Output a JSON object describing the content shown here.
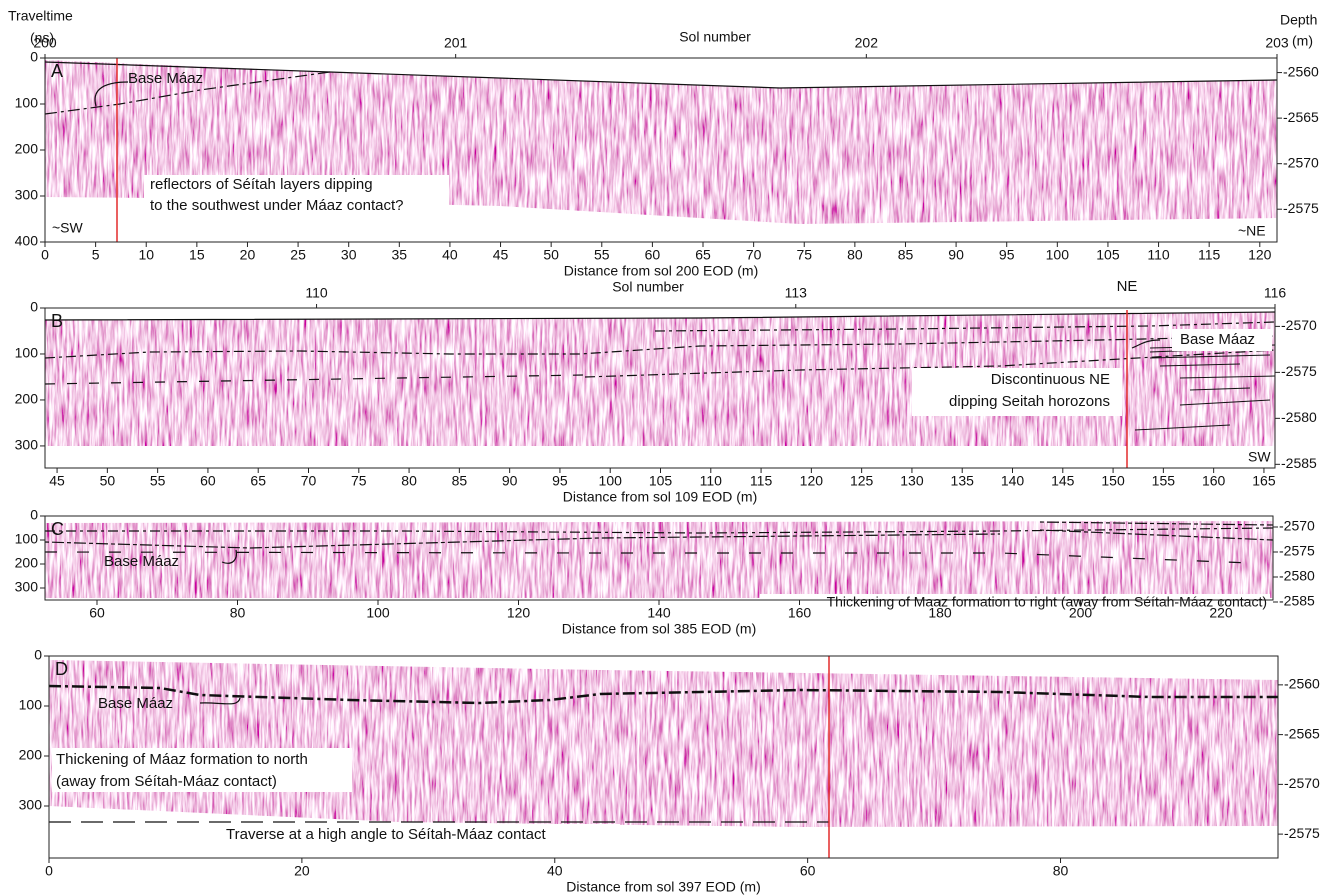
{
  "figure": {
    "traveltime_title": [
      "Traveltime",
      "(ns)"
    ],
    "depth_title": [
      "Depth",
      "(m)"
    ],
    "panels": [
      {
        "label": "A",
        "x_title": "Distance from sol 200 EOD (m)",
        "xlim": [
          0,
          121.7
        ],
        "xticks": [
          0,
          5,
          10,
          15,
          20,
          25,
          30,
          35,
          40,
          45,
          50,
          55,
          60,
          65,
          70,
          75,
          80,
          85,
          90,
          95,
          100,
          105,
          110,
          115,
          120
        ],
        "ylim": [
          0,
          400
        ],
        "yticks": [
          0,
          100,
          200,
          300,
          400
        ],
        "depth_lim": [
          -2558.4,
          -2578.6
        ],
        "depth_ticks": [
          -2560,
          -2565,
          -2570,
          -2575
        ],
        "sol_title": "Sol number",
        "sol_lim": [
          200,
          203
        ],
        "sol_ticks": [
          200,
          201,
          202,
          203
        ],
        "annotations": [
          "Base Máaz",
          "reflectors of Séítah layers dipping",
          "to the southwest under Máaz contact?",
          "~SW",
          "~NE"
        ]
      },
      {
        "label": "B",
        "x_title": "Distance from sol 109 EOD (m)",
        "xlim": [
          43.8,
          166.1
        ],
        "xticks": [
          45,
          50,
          55,
          60,
          65,
          70,
          75,
          80,
          85,
          90,
          95,
          100,
          105,
          110,
          115,
          120,
          125,
          130,
          135,
          140,
          145,
          150,
          155,
          160,
          165
        ],
        "ylim": [
          0,
          348
        ],
        "yticks": [
          0,
          100,
          200,
          300
        ],
        "depth_lim": [
          -2568.0,
          -2585.4
        ],
        "depth_ticks": [
          -2570,
          -2575,
          -2580,
          -2585
        ],
        "sol_title": "Sol number",
        "sol_lim": [
          108.3,
          116
        ],
        "sol_ticks": [
          110,
          113,
          116
        ],
        "annotations": [
          "NE",
          "Base Máaz",
          "Discontinuous NE",
          "dipping Seitah horozons",
          "SW"
        ]
      },
      {
        "label": "C",
        "x_title": "Distance from sol 385 EOD (m)",
        "xlim": [
          52.6,
          227.4
        ],
        "xticks": [
          60,
          80,
          100,
          120,
          140,
          160,
          180,
          200,
          220
        ],
        "ylim": [
          0,
          350
        ],
        "yticks": [
          0,
          100,
          200,
          300
        ],
        "depth_lim": [
          -2567.8,
          -2584.6
        ],
        "depth_ticks": [
          -2570,
          -2575,
          -2580,
          -2585
        ],
        "annotations": [
          "Base Máaz",
          "Thickening of Maaz formation to right (away from Séítah-Máaz contact)"
        ]
      },
      {
        "label": "D",
        "x_title": "Distance from sol 397 EOD (m)",
        "xlim": [
          0,
          97.2
        ],
        "xticks": [
          0,
          20,
          40,
          60,
          80
        ],
        "ylim": [
          0,
          404
        ],
        "yticks": [
          0,
          100,
          200,
          300
        ],
        "depth_lim": [
          -2557.1,
          -2577.4
        ],
        "depth_ticks": [
          -2560,
          -2565,
          -2570,
          -2575
        ],
        "annotations": [
          "Base Máaz",
          "Thickening of Máaz formation to north",
          "(away from Séítah-Máaz contact)",
          "Traverse at a high angle to Séítah-Máaz contact"
        ]
      }
    ]
  }
}
